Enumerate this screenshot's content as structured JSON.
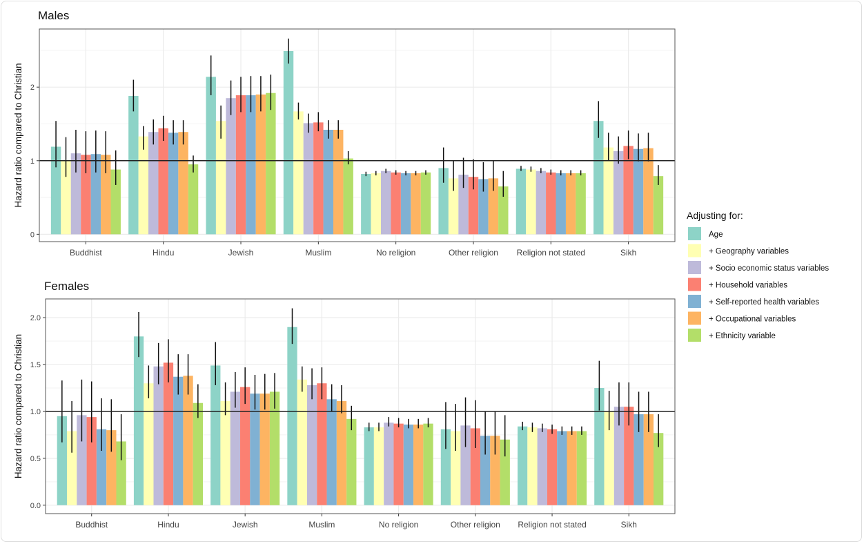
{
  "legend": {
    "title": "Adjusting for:",
    "position": "right",
    "entries": [
      "Age",
      "+ Geography variables",
      "+ Socio economic status variables",
      "+ Household variables",
      "+ Self-reported health variables",
      "+ Occupational variables",
      "+ Ethnicity variable"
    ],
    "colors": [
      "#8dd3c7",
      "#ffffb3",
      "#bebada",
      "#fb8072",
      "#80b1d3",
      "#fdb462",
      "#b3de69"
    ]
  },
  "chart_data": [
    {
      "type": "bar",
      "title": "Males",
      "ylabel": "Hazard ratio compared to Christian",
      "ylim": [
        -0.1,
        2.79
      ],
      "yticks": [
        "0",
        "1",
        "2"
      ],
      "ytick_values": [
        0,
        1,
        2
      ],
      "reference_line": 1,
      "grid": true,
      "categories": [
        "Buddhist",
        "Hindu",
        "Jewish",
        "Muslim",
        "No religion",
        "Other religion",
        "Religion not stated",
        "Sikh"
      ],
      "series": [
        {
          "name": "Age",
          "values": [
            1.19,
            1.88,
            2.14,
            2.49,
            0.82,
            0.9,
            0.89,
            1.54
          ],
          "lower": [
            0.91,
            1.67,
            1.89,
            2.32,
            0.79,
            0.7,
            0.86,
            1.31
          ],
          "upper": [
            1.54,
            2.1,
            2.43,
            2.66,
            0.85,
            1.18,
            0.93,
            1.81
          ]
        },
        {
          "name": "+ Geography variables",
          "values": [
            1.0,
            1.33,
            1.54,
            1.67,
            0.83,
            0.76,
            0.88,
            1.18
          ],
          "lower": [
            0.78,
            1.15,
            1.3,
            1.56,
            0.8,
            0.59,
            0.85,
            1.0
          ],
          "upper": [
            1.32,
            1.47,
            1.75,
            1.79,
            0.86,
            1.0,
            0.92,
            1.38
          ]
        },
        {
          "name": "+ Socio economic status variables",
          "values": [
            1.1,
            1.39,
            1.85,
            1.51,
            0.86,
            0.81,
            0.86,
            1.13
          ],
          "lower": [
            0.84,
            1.22,
            1.62,
            1.38,
            0.83,
            0.63,
            0.83,
            0.96
          ],
          "upper": [
            1.42,
            1.56,
            2.09,
            1.64,
            0.89,
            1.04,
            0.9,
            1.33
          ]
        },
        {
          "name": "+ Household variables",
          "values": [
            1.08,
            1.44,
            1.89,
            1.52,
            0.84,
            0.78,
            0.84,
            1.2
          ],
          "lower": [
            0.83,
            1.27,
            1.66,
            1.4,
            0.81,
            0.61,
            0.81,
            1.02
          ],
          "upper": [
            1.4,
            1.61,
            2.14,
            1.66,
            0.87,
            1.02,
            0.88,
            1.41
          ]
        },
        {
          "name": "+ Self-reported health variables",
          "values": [
            1.09,
            1.38,
            1.89,
            1.42,
            0.83,
            0.75,
            0.83,
            1.16
          ],
          "lower": [
            0.84,
            1.22,
            1.66,
            1.3,
            0.8,
            0.58,
            0.8,
            0.99
          ],
          "upper": [
            1.41,
            1.55,
            2.15,
            1.55,
            0.86,
            0.98,
            0.87,
            1.37
          ]
        },
        {
          "name": "+ Occupational variables",
          "values": [
            1.08,
            1.39,
            1.9,
            1.42,
            0.83,
            0.76,
            0.83,
            1.17
          ],
          "lower": [
            0.83,
            1.22,
            1.67,
            1.3,
            0.8,
            0.59,
            0.8,
            0.99
          ],
          "upper": [
            1.4,
            1.55,
            2.15,
            1.55,
            0.86,
            1.0,
            0.87,
            1.38
          ]
        },
        {
          "name": "+ Ethnicity variable",
          "values": [
            0.88,
            0.95,
            1.92,
            1.03,
            0.84,
            0.65,
            0.83,
            0.79
          ],
          "lower": [
            0.67,
            0.84,
            1.69,
            0.95,
            0.81,
            0.51,
            0.8,
            0.67
          ],
          "upper": [
            1.14,
            1.07,
            2.17,
            1.13,
            0.87,
            0.86,
            0.87,
            0.94
          ]
        }
      ]
    },
    {
      "type": "bar",
      "title": "Females",
      "ylabel": "Hazard ratio compared to Christian",
      "ylim": [
        -0.09,
        2.2
      ],
      "yticks": [
        "0.0",
        "0.5",
        "1.0",
        "1.5",
        "2.0"
      ],
      "ytick_values": [
        0,
        0.5,
        1,
        1.5,
        2
      ],
      "reference_line": 1,
      "grid": true,
      "categories": [
        "Buddhist",
        "Hindu",
        "Jewish",
        "Muslim",
        "No religion",
        "Other religion",
        "Religion not stated",
        "Sikh"
      ],
      "series": [
        {
          "name": "Age",
          "values": [
            0.95,
            1.8,
            1.49,
            1.9,
            0.83,
            0.81,
            0.84,
            1.25
          ],
          "lower": [
            0.67,
            1.58,
            1.28,
            1.72,
            0.79,
            0.6,
            0.8,
            1.01
          ],
          "upper": [
            1.33,
            2.06,
            1.74,
            2.1,
            0.88,
            1.1,
            0.89,
            1.54
          ]
        },
        {
          "name": "+ Geography variables",
          "values": [
            0.79,
            1.3,
            1.11,
            1.34,
            0.83,
            0.79,
            0.83,
            1.0
          ],
          "lower": [
            0.56,
            1.14,
            0.96,
            1.21,
            0.79,
            0.58,
            0.78,
            0.8
          ],
          "upper": [
            1.11,
            1.49,
            1.31,
            1.48,
            0.88,
            1.08,
            0.88,
            1.22
          ]
        },
        {
          "name": "+ Socio economic status variables",
          "values": [
            0.96,
            1.48,
            1.21,
            1.28,
            0.88,
            0.85,
            0.82,
            1.05
          ],
          "lower": [
            0.68,
            1.29,
            1.04,
            1.13,
            0.84,
            0.62,
            0.78,
            0.85
          ],
          "upper": [
            1.34,
            1.73,
            1.42,
            1.46,
            0.94,
            1.15,
            0.87,
            1.31
          ]
        },
        {
          "name": "+ Household variables",
          "values": [
            0.94,
            1.52,
            1.26,
            1.3,
            0.87,
            0.82,
            0.81,
            1.05
          ],
          "lower": [
            0.67,
            1.31,
            1.08,
            1.13,
            0.83,
            0.61,
            0.76,
            0.85
          ],
          "upper": [
            1.32,
            1.77,
            1.47,
            1.47,
            0.93,
            1.12,
            0.86,
            1.31
          ]
        },
        {
          "name": "+ Self-reported health variables",
          "values": [
            0.81,
            1.37,
            1.19,
            1.13,
            0.86,
            0.74,
            0.79,
            0.97
          ],
          "lower": [
            0.58,
            1.18,
            1.02,
            1.0,
            0.82,
            0.54,
            0.75,
            0.78
          ],
          "upper": [
            1.14,
            1.61,
            1.39,
            1.29,
            0.92,
            1.0,
            0.84,
            1.21
          ]
        },
        {
          "name": "+ Occupational variables",
          "values": [
            0.8,
            1.38,
            1.19,
            1.11,
            0.86,
            0.74,
            0.79,
            0.97
          ],
          "lower": [
            0.57,
            1.18,
            1.02,
            0.98,
            0.82,
            0.54,
            0.75,
            0.78
          ],
          "upper": [
            1.13,
            1.61,
            1.4,
            1.28,
            0.92,
            1.0,
            0.84,
            1.21
          ]
        },
        {
          "name": "+ Ethnicity variable",
          "values": [
            0.68,
            1.09,
            1.21,
            0.92,
            0.87,
            0.7,
            0.79,
            0.77
          ],
          "lower": [
            0.48,
            0.93,
            1.03,
            0.8,
            0.83,
            0.52,
            0.75,
            0.62
          ],
          "upper": [
            0.97,
            1.29,
            1.41,
            1.06,
            0.93,
            0.96,
            0.84,
            0.97
          ]
        }
      ]
    }
  ]
}
